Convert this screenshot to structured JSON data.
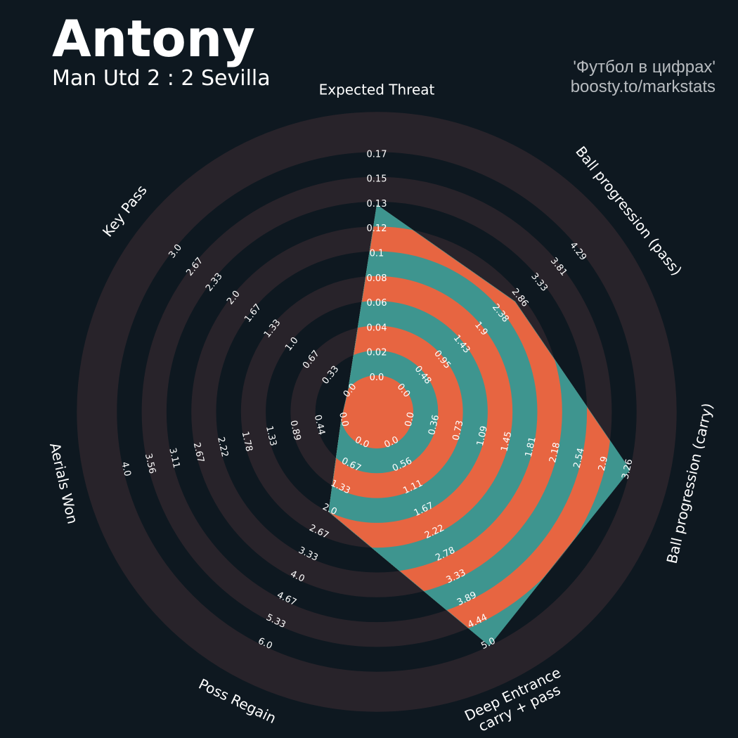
{
  "header": {
    "player": "Antony",
    "match": "Man Utd 2 : 2 Sevilla",
    "credit_line1": "'Футбол в цифрах'",
    "credit_line2": "boosty.to/markstats"
  },
  "colors": {
    "background": "#0e1820",
    "ring_band": "#28232a",
    "fill_primary": "#3e958f",
    "fill_secondary": "#e76541",
    "text": "#ffffff",
    "credit": "#b8bcc0"
  },
  "chart_data": {
    "type": "radar",
    "title": "",
    "ring_count": 10,
    "params": [
      {
        "name": "Expected Threat",
        "min": 0.0,
        "max": 0.17,
        "value": 0.13,
        "ticks": [
          "0.0",
          "0.02",
          "0.04",
          "0.06",
          "0.08",
          "0.1",
          "0.12",
          "0.13",
          "0.15",
          "0.17"
        ]
      },
      {
        "name": "Ball progression (pass)",
        "min": 0.0,
        "max": 4.29,
        "value": 2.7,
        "ticks": [
          "0.0",
          "0.48",
          "0.95",
          "1.43",
          "1.9",
          "2.38",
          "2.86",
          "3.33",
          "3.81",
          "4.29"
        ]
      },
      {
        "name": "Ball progression (carry)",
        "min": 0.0,
        "max": 3.26,
        "value": 3.26,
        "ticks": [
          "0.0",
          "0.36",
          "0.73",
          "1.09",
          "1.45",
          "1.81",
          "2.18",
          "2.54",
          "2.9",
          "3.26"
        ]
      },
      {
        "name": "Deep Entrance\ncarry + pass",
        "min": 0.0,
        "max": 5.0,
        "value": 5.0,
        "ticks": [
          "0.0",
          "0.56",
          "1.11",
          "1.67",
          "2.22",
          "2.78",
          "3.33",
          "3.89",
          "4.44",
          "5.0"
        ]
      },
      {
        "name": "Poss Regain",
        "min": 0.0,
        "max": 6.0,
        "value": 2.0,
        "ticks": [
          "0.0",
          "0.67",
          "1.33",
          "2.0",
          "2.67",
          "3.33",
          "4.0",
          "4.67",
          "5.33",
          "6.0"
        ]
      },
      {
        "name": "Aerials Won",
        "min": 0.0,
        "max": 4.0,
        "value": 0.0,
        "ticks": [
          "0.0",
          "0.44",
          "0.89",
          "1.33",
          "1.78",
          "2.22",
          "2.67",
          "3.11",
          "3.56",
          "4.0"
        ]
      },
      {
        "name": "Key Pass",
        "min": 0.0,
        "max": 3.0,
        "value": 0.0,
        "ticks": [
          "0.0",
          "0.33",
          "0.67",
          "1.0",
          "1.33",
          "1.67",
          "2.0",
          "2.33",
          "2.67",
          "3.0"
        ]
      }
    ]
  }
}
